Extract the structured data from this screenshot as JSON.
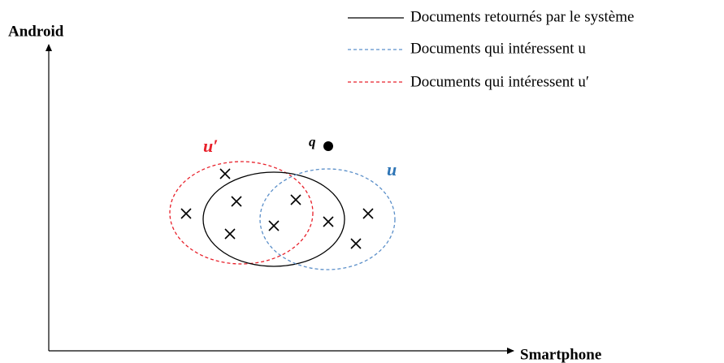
{
  "axes": {
    "y_label": "Android",
    "x_label": "Smartphone"
  },
  "legend": [
    {
      "label": "Documents retournés par le système"
    },
    {
      "label": "Documents qui intéressent u"
    },
    {
      "label": "Documents qui intéressent u′"
    }
  ],
  "labels": {
    "u_prime": "u′",
    "u": "u",
    "q": "q⃗"
  }
}
